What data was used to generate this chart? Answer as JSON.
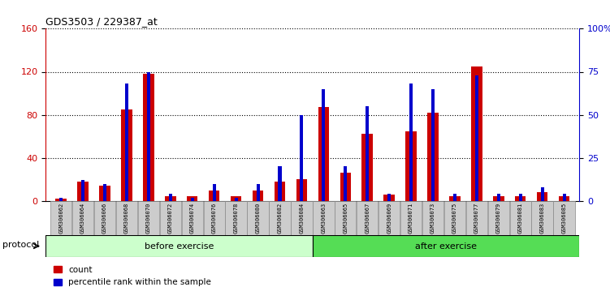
{
  "title": "GDS3503 / 229387_at",
  "samples": [
    "GSM306062",
    "GSM306064",
    "GSM306066",
    "GSM306068",
    "GSM306070",
    "GSM306072",
    "GSM306074",
    "GSM306076",
    "GSM306078",
    "GSM306080",
    "GSM306082",
    "GSM306084",
    "GSM306063",
    "GSM306065",
    "GSM306067",
    "GSM306069",
    "GSM306071",
    "GSM306073",
    "GSM306075",
    "GSM306077",
    "GSM306079",
    "GSM306081",
    "GSM306083",
    "GSM306085"
  ],
  "count": [
    2,
    18,
    14,
    85,
    118,
    4,
    4,
    10,
    4,
    10,
    18,
    20,
    87,
    26,
    62,
    6,
    65,
    82,
    4,
    125,
    4,
    4,
    8,
    4
  ],
  "percentile": [
    2,
    12,
    10,
    68,
    75,
    4,
    2,
    10,
    2,
    10,
    20,
    50,
    65,
    20,
    55,
    4,
    68,
    65,
    4,
    73,
    4,
    4,
    8,
    4
  ],
  "before_exercise_count": 12,
  "after_exercise_count": 12,
  "protocol_label": "protocol",
  "before_label": "before exercise",
  "after_label": "after exercise",
  "count_label": "count",
  "percentile_label": "percentile rank within the sample",
  "ylim_left": [
    0,
    160
  ],
  "ylim_right": [
    0,
    100
  ],
  "yticks_left": [
    0,
    40,
    80,
    120,
    160
  ],
  "yticks_right": [
    0,
    25,
    50,
    75,
    100
  ],
  "count_color": "#cc0000",
  "percentile_color": "#0000cc",
  "before_bg": "#ccffcc",
  "after_bg": "#55dd55",
  "xticklabel_bg": "#cccccc",
  "red_bar_width": 0.5,
  "blue_bar_width": 0.15,
  "figsize": [
    7.51,
    3.54
  ],
  "dpi": 100
}
